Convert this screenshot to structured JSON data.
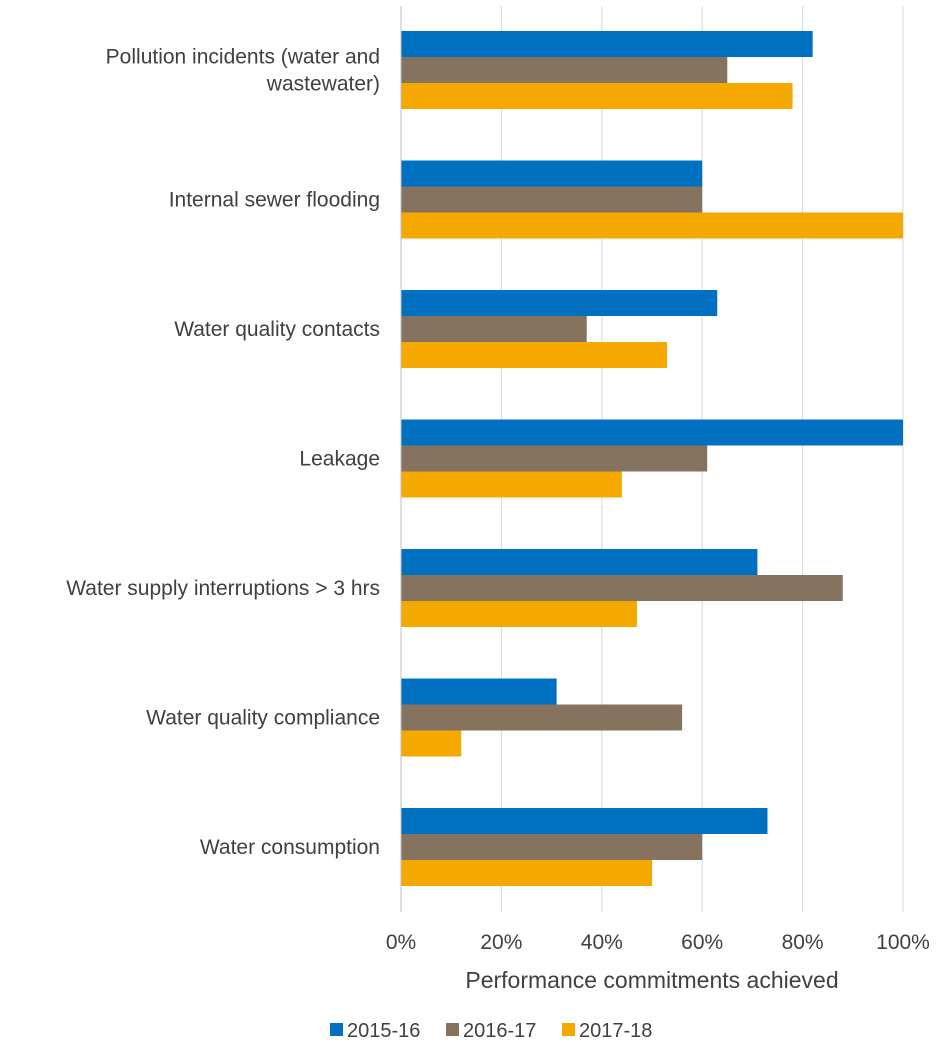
{
  "chart_data": {
    "type": "bar",
    "orientation": "horizontal",
    "title": "",
    "xlabel": "Performance commitments achieved",
    "ylabel": "",
    "xlim": [
      0,
      100
    ],
    "grid": true,
    "legend_position": "bottom",
    "x_ticks": [
      "0%",
      "20%",
      "40%",
      "60%",
      "80%",
      "100%"
    ],
    "categories": [
      "Pollution incidents (water and wastewater)",
      "Internal sewer flooding",
      "Water quality contacts",
      "Leakage",
      "Water supply interruptions > 3 hrs",
      "Water quality compliance",
      "Water consumption"
    ],
    "series": [
      {
        "name": "2015-16",
        "color": "#0070C0",
        "values": [
          82,
          60,
          63,
          100,
          71,
          31,
          73
        ]
      },
      {
        "name": "2016-17",
        "color": "#857360",
        "values": [
          65,
          60,
          37,
          61,
          88,
          56,
          60
        ]
      },
      {
        "name": "2017-18",
        "color": "#F5A800",
        "values": [
          78,
          100,
          53,
          44,
          47,
          12,
          50
        ]
      }
    ]
  }
}
